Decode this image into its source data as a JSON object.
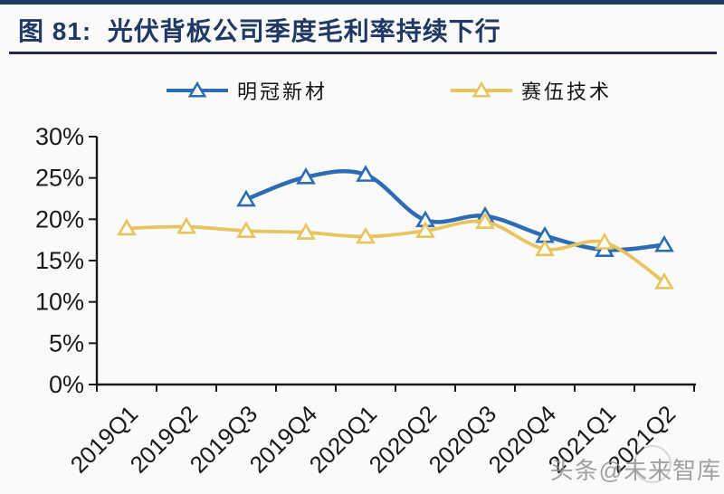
{
  "header": {
    "title": "图 81:  光伏背板公司季度毛利率持续下行"
  },
  "legend": {
    "items": [
      {
        "label": "明冠新材",
        "color": "#2C6CB5"
      },
      {
        "label": "赛伍技术",
        "color": "#E8C45F"
      }
    ]
  },
  "watermark": {
    "text": "头条@未来智库"
  },
  "colors": {
    "accent_navy": "#1F3864",
    "axis": "#1A1A1A",
    "background": "#FAFAF8",
    "series_blue": "#2C6CB5",
    "series_yellow": "#E8C45F",
    "watermark_gray": "#8E8E8E"
  },
  "chart_data": {
    "type": "line",
    "title": "光伏背板公司季度毛利率持续下行",
    "categories": [
      "2019Q1",
      "2019Q2",
      "2019Q3",
      "2019Q4",
      "2020Q1",
      "2020Q2",
      "2020Q3",
      "2020Q4",
      "2021Q1",
      "2021Q2"
    ],
    "series": [
      {
        "name": "明冠新材",
        "color": "#2C6CB5",
        "marker": "triangle-open",
        "values": [
          null,
          null,
          22.4,
          25.1,
          25.4,
          19.9,
          20.4,
          18.0,
          16.3,
          16.9
        ]
      },
      {
        "name": "赛伍技术",
        "color": "#E8C45F",
        "marker": "triangle-open",
        "values": [
          18.9,
          19.1,
          18.6,
          18.4,
          17.9,
          18.6,
          19.7,
          16.4,
          17.2,
          12.4
        ]
      }
    ],
    "xlabel": "",
    "ylabel": "",
    "ylim": [
      0,
      30
    ],
    "ytick_step": 5,
    "ytick_labels": [
      "0%",
      "5%",
      "10%",
      "15%",
      "20%",
      "25%",
      "30%"
    ],
    "x_label_rotation": -45,
    "grid": false,
    "legend_position": "top",
    "line_style": "smooth"
  }
}
